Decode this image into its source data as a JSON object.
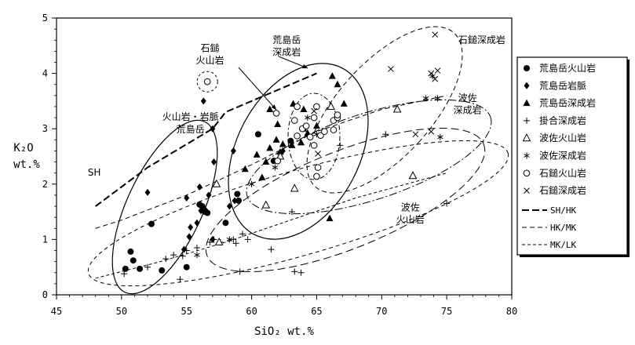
{
  "chart_data": {
    "type": "scatter",
    "xlabel": "SiO₂ wt.%",
    "ylabel_line1": "K₂O",
    "ylabel_line2": "wt.%",
    "xlim": [
      45,
      80
    ],
    "ylim": [
      0,
      5
    ],
    "x_ticks": [
      "45",
      "50",
      "55",
      "60",
      "65",
      "70",
      "75",
      "80"
    ],
    "y_ticks": [
      "0",
      "1",
      "2",
      "3",
      "4",
      "5"
    ],
    "grid": false,
    "legend_position": "right",
    "series": [
      {
        "name": "荒島岳火山岩",
        "marker": "filled-circle",
        "points": [
          [
            50.7,
            0.78
          ],
          [
            50.9,
            0.62
          ],
          [
            51.4,
            0.47
          ],
          [
            50.3,
            0.47
          ],
          [
            52.3,
            1.28
          ],
          [
            53.1,
            0.44
          ],
          [
            55.0,
            0.5
          ],
          [
            56.0,
            1.63
          ],
          [
            56.2,
            1.6
          ],
          [
            56.4,
            1.5
          ],
          [
            56.6,
            1.48
          ],
          [
            58.0,
            1.3
          ],
          [
            58.9,
            1.82
          ],
          [
            59.0,
            1.7
          ],
          [
            60.5,
            2.9
          ],
          [
            61.7,
            2.42
          ],
          [
            63.0,
            2.78
          ]
        ]
      },
      {
        "name": "荒島岳岩脈",
        "marker": "filled-diamond",
        "points": [
          [
            52.0,
            1.85
          ],
          [
            54.8,
            0.82
          ],
          [
            55.2,
            1.05
          ],
          [
            55.3,
            1.22
          ],
          [
            55.0,
            1.75
          ],
          [
            55.8,
            1.3
          ],
          [
            56.1,
            1.52
          ],
          [
            56.0,
            1.95
          ],
          [
            56.5,
            1.52
          ],
          [
            56.7,
            1.8
          ],
          [
            57.1,
            2.4
          ],
          [
            57.0,
            1.0
          ],
          [
            58.3,
            1.6
          ],
          [
            58.7,
            1.7
          ],
          [
            57.0,
            3.0
          ],
          [
            58.6,
            2.6
          ],
          [
            56.3,
            3.5
          ],
          [
            62.4,
            2.6
          ]
        ]
      },
      {
        "name": "荒島岳深成岩",
        "marker": "filled-triangle",
        "points": [
          [
            59.5,
            2.27
          ],
          [
            60.4,
            2.53
          ],
          [
            60.8,
            2.12
          ],
          [
            61.1,
            2.4
          ],
          [
            61.4,
            2.65
          ],
          [
            61.4,
            3.35
          ],
          [
            61.9,
            2.8
          ],
          [
            62.0,
            3.08
          ],
          [
            62.2,
            2.58
          ],
          [
            62.4,
            2.72
          ],
          [
            63.1,
            2.7
          ],
          [
            63.2,
            3.45
          ],
          [
            63.8,
            2.75
          ],
          [
            64.3,
            2.92
          ],
          [
            64.0,
            3.0
          ],
          [
            64.0,
            3.35
          ],
          [
            65.0,
            3.05
          ],
          [
            66.2,
            3.95
          ],
          [
            66.6,
            3.8
          ],
          [
            67.1,
            3.45
          ],
          [
            66.0,
            1.38
          ]
        ]
      },
      {
        "name": "掛合深成岩",
        "marker": "plus",
        "points": [
          [
            50.2,
            0.38
          ],
          [
            52.0,
            0.5
          ],
          [
            53.4,
            0.65
          ],
          [
            54.0,
            0.72
          ],
          [
            54.5,
            0.28
          ],
          [
            54.7,
            0.7
          ],
          [
            55.0,
            0.8
          ],
          [
            55.8,
            0.85
          ],
          [
            56.8,
            0.95
          ],
          [
            57.1,
            1.0
          ],
          [
            57.6,
            0.95
          ],
          [
            58.6,
            1.0
          ],
          [
            58.8,
            0.93
          ],
          [
            59.1,
            0.42
          ],
          [
            59.3,
            1.1
          ],
          [
            59.7,
            1.0
          ],
          [
            61.5,
            0.82
          ],
          [
            63.1,
            1.5
          ],
          [
            63.3,
            0.42
          ],
          [
            63.8,
            0.4
          ],
          [
            66.8,
            2.7
          ],
          [
            70.3,
            2.9
          ],
          [
            75.0,
            1.65
          ]
        ]
      },
      {
        "name": "波佐火山岩",
        "marker": "open-triangle",
        "points": [
          [
            57.3,
            2.0
          ],
          [
            57.5,
            0.95
          ],
          [
            61.1,
            1.62
          ],
          [
            63.3,
            1.92
          ],
          [
            62.2,
            2.5
          ],
          [
            66.1,
            3.4
          ],
          [
            71.2,
            3.35
          ],
          [
            72.4,
            2.15
          ]
        ]
      },
      {
        "name": "波佐深成岩",
        "marker": "asterisk",
        "points": [
          [
            55.8,
            0.72
          ],
          [
            58.3,
            1.0
          ],
          [
            60.0,
            2.0
          ],
          [
            61.8,
            2.3
          ],
          [
            64.3,
            3.2
          ],
          [
            65.0,
            2.9
          ],
          [
            73.4,
            3.55
          ],
          [
            73.9,
            3.95
          ],
          [
            74.3,
            3.55
          ],
          [
            74.5,
            2.85
          ]
        ]
      },
      {
        "name": "石鎚火山岩",
        "marker": "open-circle",
        "points": [
          [
            56.6,
            3.85
          ],
          [
            61.9,
            3.28
          ],
          [
            63.5,
            2.87
          ],
          [
            63.9,
            3.0
          ],
          [
            64.2,
            3.05
          ],
          [
            64.5,
            2.85
          ],
          [
            64.8,
            3.2
          ],
          [
            64.8,
            2.7
          ],
          [
            65.1,
            2.3
          ],
          [
            65.0,
            2.14
          ],
          [
            65.3,
            2.88
          ],
          [
            65.6,
            2.95
          ],
          [
            65.0,
            3.4
          ],
          [
            66.3,
            2.98
          ],
          [
            66.3,
            3.15
          ],
          [
            66.6,
            3.2
          ],
          [
            66.6,
            3.25
          ],
          [
            63.3,
            3.15
          ],
          [
            63.5,
            3.4
          ],
          [
            62.0,
            2.42
          ]
        ]
      },
      {
        "name": "石鎚深成岩",
        "marker": "cross",
        "points": [
          [
            65.1,
            2.55
          ],
          [
            64.8,
            3.32
          ],
          [
            70.7,
            4.08
          ],
          [
            73.8,
            4.0
          ],
          [
            74.1,
            4.7
          ],
          [
            74.1,
            3.9
          ],
          [
            74.3,
            4.05
          ],
          [
            72.6,
            2.9
          ],
          [
            73.8,
            2.95
          ]
        ]
      }
    ],
    "boundaries": [
      {
        "name": "SH/HK",
        "style": "dashed-thick",
        "x": [
          48.0,
          52.0,
          57.0,
          58.0,
          63.0,
          65.0
        ],
        "y": [
          1.6,
          2.3,
          3.0,
          3.3,
          3.8,
          4.0
        ]
      },
      {
        "name": "HK/MK",
        "style": "dashed",
        "x": [
          48.0,
          50.0,
          55.0,
          60.0,
          65.0,
          70.0,
          75.0
        ],
        "y": [
          1.2,
          1.35,
          1.8,
          2.35,
          2.95,
          3.35,
          3.6
        ]
      },
      {
        "name": "MK/LK",
        "style": "dashed-fine",
        "x": [
          48.0,
          53.0,
          58.0,
          63.0,
          68.0,
          75.0
        ],
        "y": [
          0.3,
          0.6,
          0.95,
          1.35,
          1.75,
          2.2
        ]
      }
    ],
    "field_ellipses": [
      {
        "name": "荒島岳火山岩・岩脈",
        "style": "solid"
      },
      {
        "name": "荒島岳深成岩",
        "style": "solid"
      },
      {
        "name": "石鎚火山岩",
        "style": "dashdot"
      },
      {
        "name": "石鎚深成岩",
        "style": "dashed"
      },
      {
        "name": "波佐深成岩",
        "style": "dashdot-long"
      },
      {
        "name": "波佐火山岩",
        "style": "dashed-long"
      },
      {
        "name": "掛合深成岩",
        "style": "dashed-small"
      }
    ],
    "annotations": [
      {
        "text": "荒島岳",
        "x": 55.3,
        "y": 2.93
      },
      {
        "text": "火山岩・岩脈",
        "x": 55.3,
        "y": 3.16
      },
      {
        "text": "石鎚",
        "x": 56.8,
        "y": 4.4
      },
      {
        "text": "火山岩",
        "x": 56.8,
        "y": 4.18
      },
      {
        "text": "荒島岳",
        "x": 62.7,
        "y": 4.55
      },
      {
        "text": "深成岩",
        "x": 62.7,
        "y": 4.33
      },
      {
        "text": "石鎚深成岩",
        "x": 77.7,
        "y": 4.55
      },
      {
        "text": "波佐",
        "x": 76.6,
        "y": 3.5
      },
      {
        "text": "深成岩",
        "x": 76.6,
        "y": 3.28
      },
      {
        "text": "波佐",
        "x": 72.2,
        "y": 1.52
      },
      {
        "text": "火山岩",
        "x": 72.2,
        "y": 1.3
      },
      {
        "text": "SH",
        "x": 47.9,
        "y": 2.15
      }
    ]
  },
  "legend": {
    "items": [
      {
        "label": "荒島岳火山岩",
        "marker": "filled-circle"
      },
      {
        "label": "荒島岳岩脈",
        "marker": "filled-diamond"
      },
      {
        "label": "荒島岳深成岩",
        "marker": "filled-triangle"
      },
      {
        "label": "掛合深成岩",
        "marker": "plus"
      },
      {
        "label": "波佐火山岩",
        "marker": "open-triangle"
      },
      {
        "label": "波佐深成岩",
        "marker": "asterisk"
      },
      {
        "label": "石鎚火山岩",
        "marker": "open-circle"
      },
      {
        "label": "石鎚深成岩",
        "marker": "cross"
      }
    ],
    "lines": [
      {
        "label": "SH/HK",
        "style": "dashed-thick"
      },
      {
        "label": "HK/MK",
        "style": "dashed"
      },
      {
        "label": "MK/LK",
        "style": "dashed-fine"
      }
    ]
  }
}
